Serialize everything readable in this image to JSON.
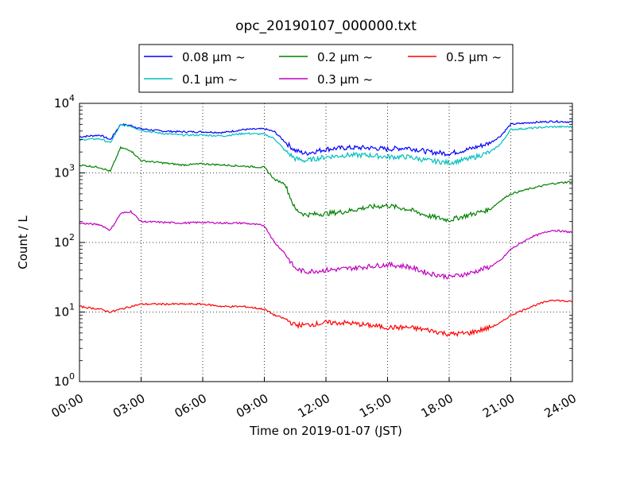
{
  "chart_data": {
    "type": "line",
    "title": "opc_20190107_000000.txt",
    "xlabel": "Time on 2019-01-07 (JST)",
    "ylabel": "Count / L",
    "yscale": "log",
    "ylim": [
      1,
      10000
    ],
    "xlim": [
      "00:00",
      "24:00"
    ],
    "x_ticks": [
      "00:00",
      "03:00",
      "06:00",
      "09:00",
      "12:00",
      "15:00",
      "18:00",
      "21:00",
      "24:00"
    ],
    "y_ticks": [
      {
        "base": "10",
        "exp": "0"
      },
      {
        "base": "10",
        "exp": "1"
      },
      {
        "base": "10",
        "exp": "2"
      },
      {
        "base": "10",
        "exp": "3"
      },
      {
        "base": "10",
        "exp": "4"
      }
    ],
    "grid": true,
    "legend_position": "top-center",
    "x": [
      "00:00",
      "01:00",
      "01:30",
      "02:00",
      "02:30",
      "03:00",
      "04:00",
      "05:00",
      "06:00",
      "07:00",
      "08:00",
      "09:00",
      "09:30",
      "10:00",
      "10:30",
      "11:00",
      "12:00",
      "13:00",
      "14:00",
      "15:00",
      "16:00",
      "17:00",
      "18:00",
      "19:00",
      "20:00",
      "20:30",
      "21:00",
      "22:00",
      "23:00",
      "24:00"
    ],
    "series": [
      {
        "name": "0.08",
        "unit": "μm ~",
        "color": "#0000ff",
        "values": [
          3300,
          3500,
          3000,
          5000,
          4800,
          4300,
          4000,
          3900,
          3900,
          3800,
          4200,
          4300,
          3900,
          2800,
          2100,
          1900,
          2200,
          2300,
          2300,
          2200,
          2300,
          2000,
          1900,
          2200,
          2700,
          3400,
          5000,
          5300,
          5500,
          5400
        ]
      },
      {
        "name": "0.1",
        "unit": "μm ~",
        "color": "#00bfbf",
        "values": [
          3000,
          3100,
          2700,
          4900,
          4700,
          4100,
          3700,
          3500,
          3500,
          3400,
          3700,
          3600,
          3100,
          2100,
          1600,
          1500,
          1700,
          1800,
          1800,
          1700,
          1700,
          1500,
          1400,
          1600,
          2000,
          2600,
          4200,
          4400,
          4600,
          4600
        ]
      },
      {
        "name": "0.2",
        "unit": "μm ~",
        "color": "#008000",
        "values": [
          1300,
          1200,
          1050,
          2300,
          2100,
          1500,
          1400,
          1300,
          1350,
          1300,
          1250,
          1200,
          800,
          700,
          300,
          250,
          260,
          280,
          320,
          340,
          300,
          240,
          210,
          250,
          300,
          400,
          500,
          600,
          700,
          750
        ]
      },
      {
        "name": "0.3",
        "unit": "μm ~",
        "color": "#bf00bf",
        "values": [
          190,
          180,
          150,
          260,
          280,
          200,
          195,
          190,
          195,
          190,
          190,
          175,
          100,
          70,
          42,
          38,
          40,
          42,
          45,
          48,
          45,
          36,
          32,
          36,
          45,
          55,
          80,
          120,
          150,
          140
        ]
      },
      {
        "name": "0.5",
        "unit": "μm ~",
        "color": "#ff0000",
        "values": [
          12,
          11,
          10,
          11,
          12,
          13,
          13,
          13,
          13,
          12,
          12,
          11,
          9,
          8,
          6.5,
          6.5,
          7,
          7,
          6.5,
          6,
          6,
          5.5,
          4.8,
          5,
          6,
          7,
          9,
          12,
          15,
          14
        ]
      }
    ]
  }
}
